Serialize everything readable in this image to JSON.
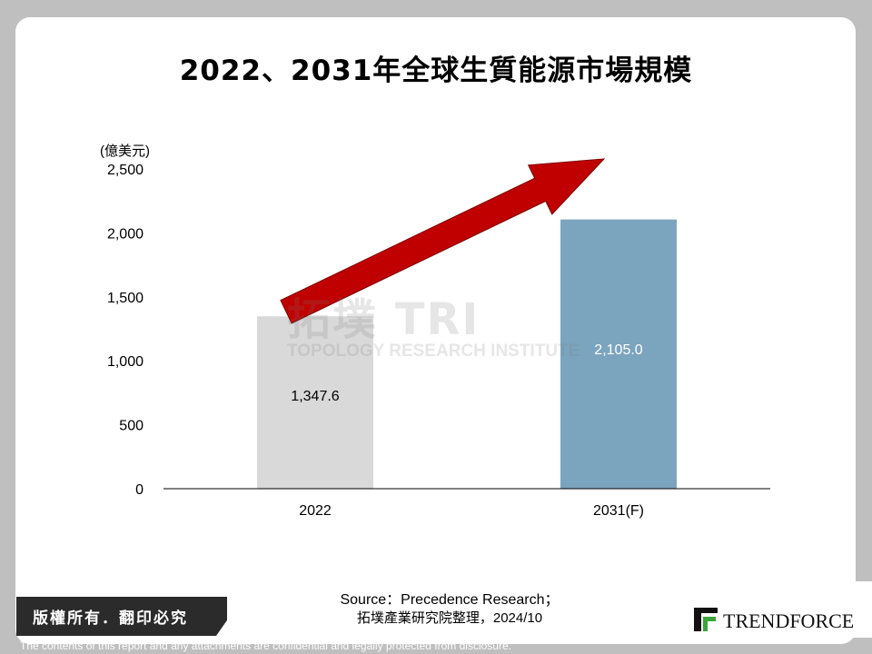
{
  "title": "2022、2031年全球生質能源市場規模",
  "chart_data": {
    "type": "bar",
    "ylabel": "(億美元)",
    "ylim": [
      0,
      2500
    ],
    "yticks": [
      0,
      500,
      1000,
      1500,
      2000,
      2500
    ],
    "ytick_labels": [
      "0",
      "500",
      "1,000",
      "1,500",
      "2,000",
      "2,500"
    ],
    "categories": [
      "2022",
      "2031(F)"
    ],
    "values": [
      1347.6,
      2105.0
    ],
    "data_labels": [
      "1,347.6",
      "2,105.0"
    ],
    "colors": [
      "#d9d9d9",
      "#7ba4be"
    ],
    "arrow_color": "#c00000",
    "grid": false,
    "legend": "none"
  },
  "watermark": {
    "main": "拓墣",
    "main_latin": "TRI",
    "sub": "TOPOLOGY RESEARCH INSTITUTE"
  },
  "source": {
    "line1": "Source：Precedence Research；",
    "line2": "拓墣產業研究院整理，2024/10"
  },
  "footer": {
    "copyright": "版權所有．翻印必究",
    "logo_text": "TRENDFORCE",
    "disclaimer": "The contents of this report and any attachments are confidential and legally protected from disclosure."
  }
}
